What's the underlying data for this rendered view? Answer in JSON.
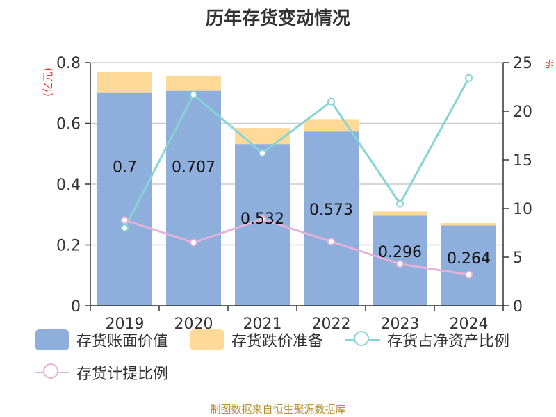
{
  "chart_data": {
    "type": "bar",
    "title": "历年存货变动情况",
    "categories": [
      "2019",
      "2020",
      "2021",
      "2022",
      "2023",
      "2024"
    ],
    "left_axis": {
      "label": "(亿元)",
      "ylim": [
        0,
        0.8
      ],
      "ticks": [
        "0",
        "0.2",
        "0.4",
        "0.6",
        "0.8"
      ]
    },
    "right_axis": {
      "label": "%",
      "ylim": [
        0,
        25
      ],
      "ticks": [
        "0",
        "5",
        "10",
        "15",
        "20",
        "25"
      ]
    },
    "series": [
      {
        "name": "存货账面价值",
        "kind": "bar",
        "axis": "left",
        "color": "#8eaedb",
        "values": [
          0.7,
          0.707,
          0.532,
          0.573,
          0.296,
          0.264
        ],
        "labels": [
          "0.7",
          "0.707",
          "0.532",
          "0.573",
          "0.296",
          "0.264"
        ]
      },
      {
        "name": "存货跌价准备",
        "kind": "bar",
        "axis": "left",
        "stacked": true,
        "color": "#ffd998",
        "values": [
          0.068,
          0.05,
          0.053,
          0.041,
          0.014,
          0.008
        ]
      },
      {
        "name": "存货占净资产比例",
        "kind": "line",
        "axis": "right",
        "color": "#86d4d6",
        "values": [
          8.0,
          21.7,
          15.7,
          21.0,
          10.5,
          23.4
        ]
      },
      {
        "name": "存货计提比例",
        "kind": "line",
        "axis": "right",
        "color": "#e5b3da",
        "values": [
          8.8,
          6.5,
          8.9,
          6.6,
          4.3,
          3.2
        ]
      }
    ],
    "grid": true,
    "legend": "bottom"
  },
  "source_note": "制图数据来自恒生聚源数据库"
}
